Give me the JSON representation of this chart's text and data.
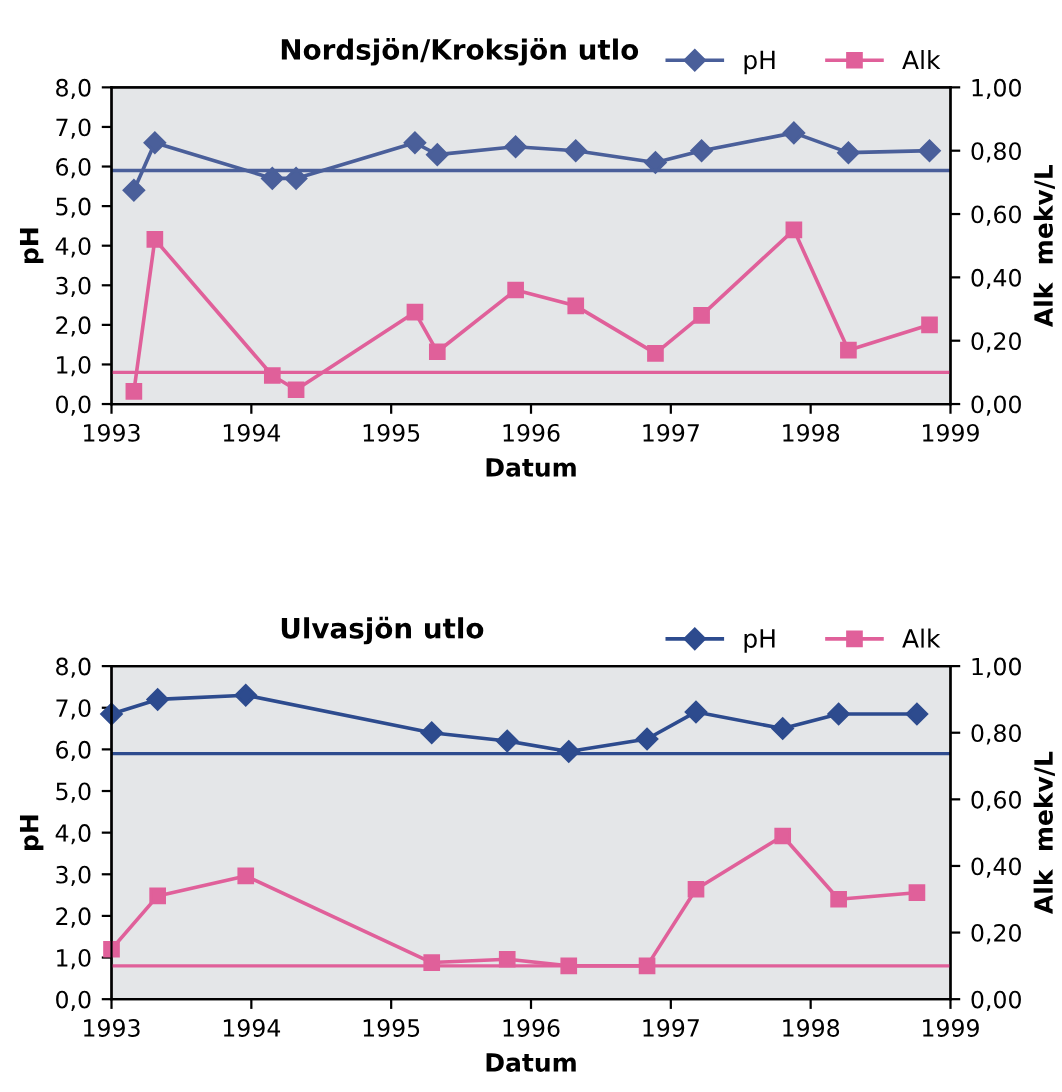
{
  "chart_data": [
    {
      "type": "line",
      "title": "Nordsjön/Kroksjön utlo",
      "xlabel": "Datum",
      "ylabel": "pH",
      "y2label": "Alk  mekv/L",
      "legend": "top right",
      "grid": false,
      "xlim": [
        1993,
        1999
      ],
      "xticks": [
        1993,
        1994,
        1995,
        1996,
        1997,
        1998,
        1999
      ],
      "ylim": [
        0,
        8
      ],
      "yticks": [
        {
          "value": 0,
          "label": "0,0"
        },
        {
          "value": 1,
          "label": "1,0"
        },
        {
          "value": 2,
          "label": "2,0"
        },
        {
          "value": 3,
          "label": "3,0"
        },
        {
          "value": 4,
          "label": "4,0"
        },
        {
          "value": 5,
          "label": "5,0"
        },
        {
          "value": 6,
          "label": "6,0"
        },
        {
          "value": 7,
          "label": "7,0"
        },
        {
          "value": 8,
          "label": "8,0"
        }
      ],
      "y2lim": [
        0,
        1
      ],
      "y2ticks": [
        {
          "value": 0,
          "label": "0,00"
        },
        {
          "value": 0.2,
          "label": "0,20"
        },
        {
          "value": 0.4,
          "label": "0,40"
        },
        {
          "value": 0.6,
          "label": "0,60"
        },
        {
          "value": 0.8,
          "label": "0,80"
        },
        {
          "value": 1,
          "label": "1,00"
        }
      ],
      "series": [
        {
          "name": "pH",
          "color": "#4a5f9a",
          "marker": "diamond",
          "x": [
            1993.16,
            1993.31,
            1994.15,
            1994.32,
            1995.17,
            1995.33,
            1995.89,
            1996.32,
            1996.89,
            1997.22,
            1997.88,
            1998.27,
            1998.85
          ],
          "values": [
            5.4,
            6.6,
            5.7,
            5.7,
            6.6,
            6.3,
            6.5,
            6.4,
            6.1,
            6.4,
            6.85,
            6.35,
            6.4
          ]
        },
        {
          "name": "Alk",
          "color": "#e0609a",
          "marker": "square",
          "axis": "y2",
          "x": [
            1993.16,
            1993.31,
            1994.15,
            1994.32,
            1995.17,
            1995.33,
            1995.89,
            1996.32,
            1996.89,
            1997.22,
            1997.88,
            1998.27,
            1998.85
          ],
          "values": [
            0.04,
            0.52,
            0.09,
            0.045,
            0.29,
            0.165,
            0.36,
            0.31,
            0.16,
            0.28,
            0.55,
            0.17,
            0.25
          ]
        }
      ],
      "ref_lines": [
        {
          "axis": "y",
          "value": 5.9,
          "color": "#4a5f9a"
        },
        {
          "axis": "y2",
          "value": 0.1,
          "color": "#e0609a"
        }
      ]
    },
    {
      "type": "line",
      "title": "Ulvasjön utlo",
      "xlabel": "Datum",
      "ylabel": "pH",
      "y2label": "Alk  mekv/L",
      "legend": "top right",
      "grid": false,
      "xlim": [
        1993,
        1999
      ],
      "xticks": [
        1993,
        1994,
        1995,
        1996,
        1997,
        1998,
        1999
      ],
      "ylim": [
        0,
        8
      ],
      "yticks": [
        {
          "value": 0,
          "label": "0,0"
        },
        {
          "value": 1,
          "label": "1,0"
        },
        {
          "value": 2,
          "label": "2,0"
        },
        {
          "value": 3,
          "label": "3,0"
        },
        {
          "value": 4,
          "label": "4,0"
        },
        {
          "value": 5,
          "label": "5,0"
        },
        {
          "value": 6,
          "label": "6,0"
        },
        {
          "value": 7,
          "label": "7,0"
        },
        {
          "value": 8,
          "label": "8,0"
        }
      ],
      "y2lim": [
        0,
        1
      ],
      "y2ticks": [
        {
          "value": 0,
          "label": "0,00"
        },
        {
          "value": 0.2,
          "label": "0,20"
        },
        {
          "value": 0.4,
          "label": "0,40"
        },
        {
          "value": 0.6,
          "label": "0,60"
        },
        {
          "value": 0.8,
          "label": "0,80"
        },
        {
          "value": 1,
          "label": "1,00"
        }
      ],
      "series": [
        {
          "name": "pH",
          "color": "#2d4b8e",
          "marker": "diamond",
          "x": [
            1993.0,
            1993.33,
            1993.96,
            1995.29,
            1995.83,
            1996.27,
            1996.83,
            1997.18,
            1997.8,
            1998.2,
            1998.76
          ],
          "values": [
            6.85,
            7.2,
            7.3,
            6.4,
            6.2,
            5.95,
            6.25,
            6.9,
            6.5,
            6.85,
            6.85
          ]
        },
        {
          "name": "Alk",
          "color": "#e0609a",
          "marker": "square",
          "axis": "y2",
          "x": [
            1993.0,
            1993.33,
            1993.96,
            1995.29,
            1995.83,
            1996.27,
            1996.83,
            1997.18,
            1997.8,
            1998.2,
            1998.76
          ],
          "values": [
            0.15,
            0.31,
            0.37,
            0.11,
            0.12,
            0.1,
            0.1,
            0.33,
            0.49,
            0.3,
            0.32
          ]
        }
      ],
      "ref_lines": [
        {
          "axis": "y",
          "value": 5.9,
          "color": "#2d4b8e"
        },
        {
          "axis": "y2",
          "value": 0.1,
          "color": "#e0609a"
        }
      ]
    }
  ]
}
